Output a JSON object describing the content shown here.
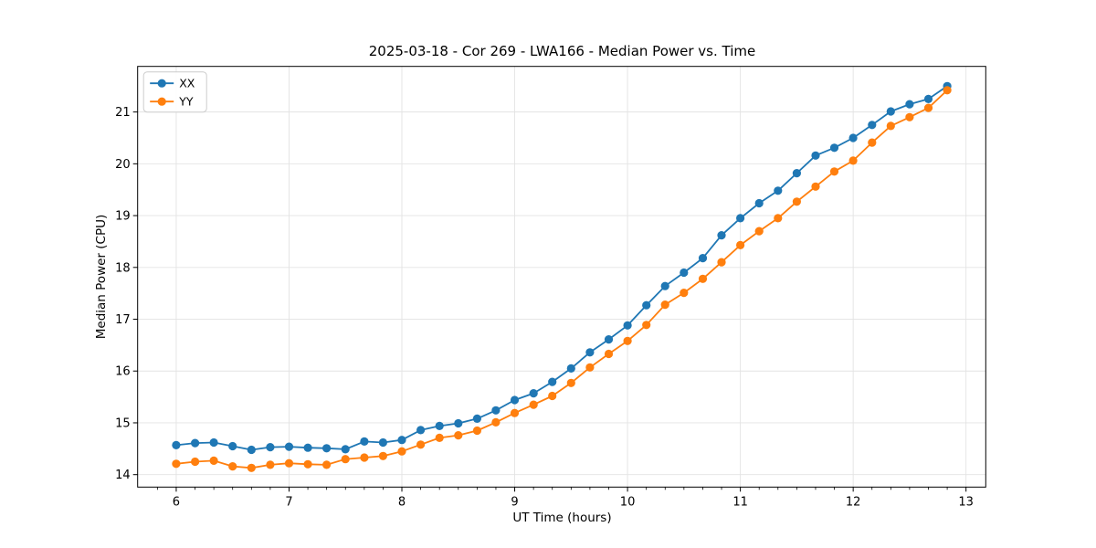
{
  "page": {
    "background": "#ffffff"
  },
  "chart_data": {
    "type": "line",
    "title": "2025-03-18 - Cor 269 - LWA166 - Median Power vs. Time",
    "xlabel": "UT Time (hours)",
    "ylabel": "Median Power (CPU)",
    "xlim": [
      5.658,
      13.175
    ],
    "ylim": [
      13.76,
      21.88
    ],
    "x_major_ticks": [
      6,
      7,
      8,
      9,
      10,
      11,
      12,
      13
    ],
    "x_minor_step": 0.166667,
    "y_major_ticks": [
      14,
      15,
      16,
      17,
      18,
      19,
      20,
      21
    ],
    "grid": true,
    "grid_color": "#e3e3e3",
    "legend_position": "upper left",
    "x": [
      6.0,
      6.167,
      6.333,
      6.5,
      6.667,
      6.833,
      7.0,
      7.167,
      7.333,
      7.5,
      7.667,
      7.833,
      8.0,
      8.167,
      8.333,
      8.5,
      8.667,
      8.833,
      9.0,
      9.167,
      9.333,
      9.5,
      9.667,
      9.833,
      10.0,
      10.167,
      10.333,
      10.5,
      10.667,
      10.833,
      11.0,
      11.167,
      11.333,
      11.5,
      11.667,
      11.833,
      12.0,
      12.167,
      12.333,
      12.5,
      12.667,
      12.833
    ],
    "series": [
      {
        "name": "XX",
        "color": "#1f77b4",
        "values": [
          14.57,
          14.61,
          14.62,
          14.55,
          14.48,
          14.53,
          14.54,
          14.52,
          14.51,
          14.49,
          14.64,
          14.62,
          14.67,
          14.86,
          14.94,
          14.99,
          15.08,
          15.24,
          15.44,
          15.57,
          15.79,
          16.05,
          16.36,
          16.61,
          16.88,
          17.27,
          17.64,
          17.9,
          18.18,
          18.62,
          18.95,
          19.24,
          19.48,
          19.82,
          20.16,
          20.31,
          20.5,
          20.75,
          21.01,
          21.15,
          21.25,
          21.5
        ]
      },
      {
        "name": "YY",
        "color": "#ff7f0e",
        "values": [
          14.21,
          14.25,
          14.27,
          14.16,
          14.13,
          14.19,
          14.22,
          14.2,
          14.19,
          14.3,
          14.33,
          14.36,
          14.45,
          14.58,
          14.71,
          14.76,
          14.85,
          15.01,
          15.19,
          15.35,
          15.52,
          15.77,
          16.07,
          16.33,
          16.58,
          16.89,
          17.28,
          17.51,
          17.78,
          18.1,
          18.43,
          18.7,
          18.95,
          19.27,
          19.56,
          19.85,
          20.06,
          20.41,
          20.73,
          20.9,
          21.08,
          21.42
        ]
      }
    ]
  }
}
